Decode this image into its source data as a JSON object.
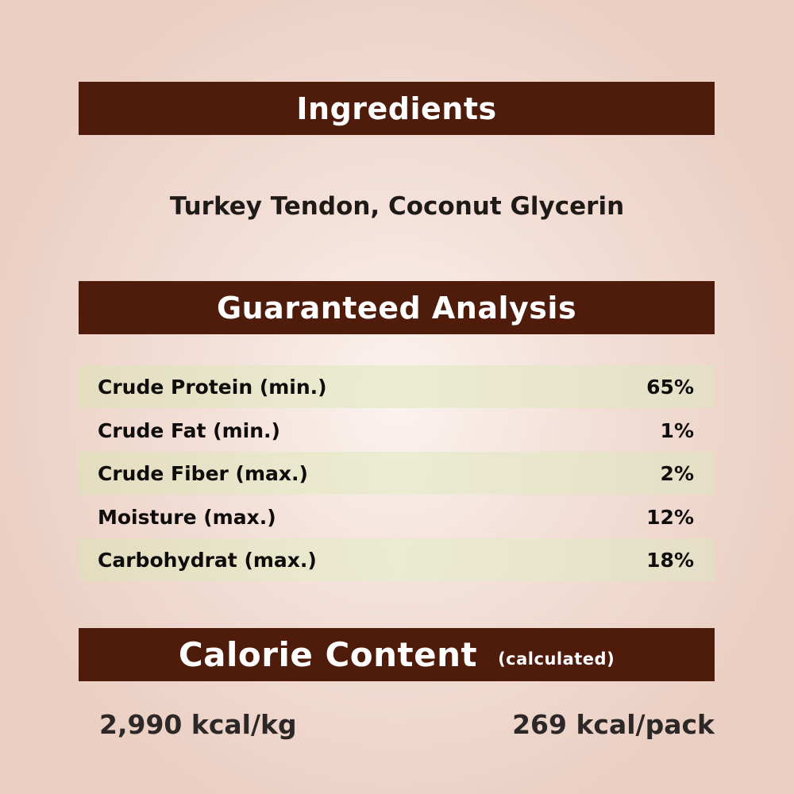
{
  "ingredients": {
    "heading": "Ingredients",
    "text": "Turkey Tendon, Coconut Glycerin"
  },
  "analysis": {
    "heading": "Guaranteed Analysis",
    "rows": [
      {
        "label": "Crude Protein (min.)",
        "value": "65%"
      },
      {
        "label": "Crude Fat (min.)",
        "value": "1%"
      },
      {
        "label": "Crude Fiber (max.)",
        "value": "2%"
      },
      {
        "label": "Moisture (max.)",
        "value": "12%"
      },
      {
        "label": "Carbohydrat (max.)",
        "value": "18%"
      }
    ]
  },
  "calorie": {
    "heading": "Calorie Content",
    "subheading": "(calculated)",
    "per_kg": "2,990 kcal/kg",
    "per_pack": "269 kcal/pack"
  },
  "colors": {
    "banner": "#4f1c0c",
    "background": "#ebcfc3",
    "row_band": "#e6e2c8"
  }
}
